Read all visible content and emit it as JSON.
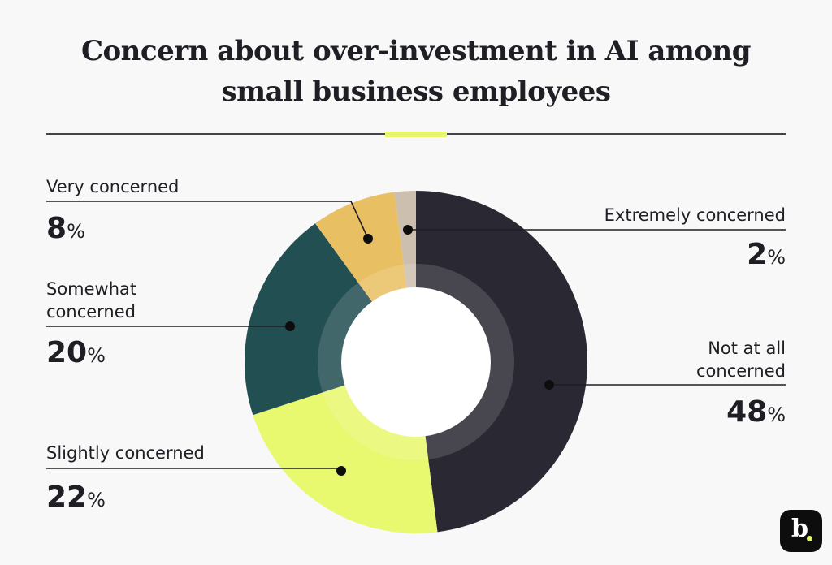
{
  "title": {
    "line1": "Concern about over-investment in AI among",
    "line2": "small business employees"
  },
  "labels": {
    "very": {
      "label": "Very concerned",
      "value": "8",
      "unit": "%"
    },
    "somewhat": {
      "label1": "Somewhat",
      "label2": "concerned",
      "value": "20",
      "unit": "%"
    },
    "slightly": {
      "label": "Slightly concerned",
      "value": "22",
      "unit": "%"
    },
    "extremely": {
      "label": "Extremely concerned",
      "value": "2",
      "unit": "%"
    },
    "notatall": {
      "label1": "Not at all",
      "label2": "concerned",
      "value": "48",
      "unit": "%"
    }
  },
  "logo": {
    "letter": "b",
    "accent_color": "#e6f66c"
  },
  "chart_data": {
    "type": "pie",
    "subtype": "donut",
    "title": "Concern about over-investment in AI among small business employees",
    "categories": [
      "Not at all concerned",
      "Slightly concerned",
      "Somewhat concerned",
      "Very concerned",
      "Extremely concerned"
    ],
    "values": [
      48,
      22,
      20,
      8,
      2
    ],
    "unit": "%",
    "colors": [
      "#2a2832",
      "#e8f86f",
      "#224f52",
      "#e9bf63",
      "#cdbfaf"
    ],
    "start_angle": "12 o'clock, clockwise",
    "legend": "callout labels with leader lines"
  }
}
